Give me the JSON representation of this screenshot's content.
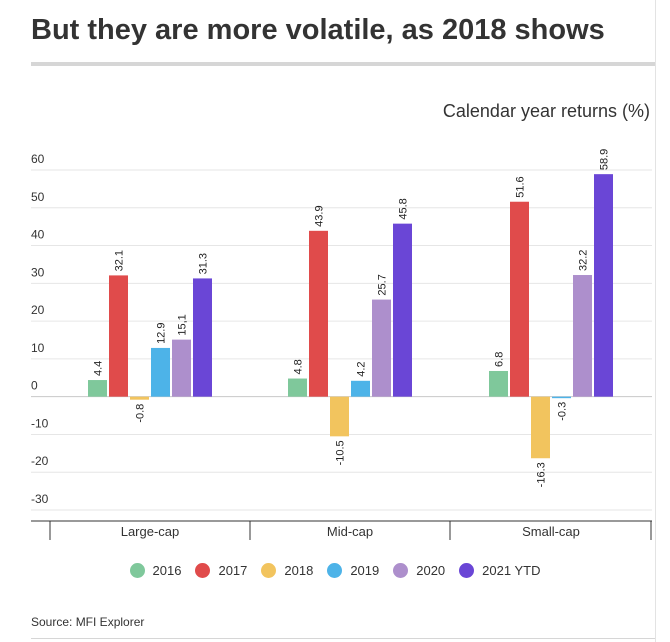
{
  "title": "But they are more volatile, as 2018 shows",
  "subtitle": "Calendar year returns (%)",
  "source": "Source: MFI Explorer",
  "chart_data": {
    "type": "bar",
    "categories": [
      "Large-cap",
      "Mid-cap",
      "Small-cap"
    ],
    "series": [
      {
        "name": "2016",
        "color": "#7fc89b",
        "values": [
          4.4,
          4.8,
          6.8
        ],
        "labels": [
          "4.4",
          "4.8",
          "6.8"
        ]
      },
      {
        "name": "2017",
        "color": "#e04b4b",
        "values": [
          32.1,
          43.9,
          51.6
        ],
        "labels": [
          "32.1",
          "43.9",
          "51.6"
        ]
      },
      {
        "name": "2018",
        "color": "#f2c45e",
        "values": [
          -0.8,
          -10.5,
          -16.3
        ],
        "labels": [
          "-0.8",
          "-10.5",
          "-16.3"
        ]
      },
      {
        "name": "2019",
        "color": "#4db3e8",
        "values": [
          12.9,
          4.2,
          -0.3
        ],
        "labels": [
          "12.9",
          "4.2",
          "-0.3"
        ]
      },
      {
        "name": "2020",
        "color": "#ad8fcc",
        "values": [
          15.1,
          25.7,
          32.2
        ],
        "labels": [
          "15,1",
          "25.7",
          "32.2"
        ]
      },
      {
        "name": "2021 YTD",
        "color": "#6a46d6",
        "values": [
          31.3,
          45.8,
          58.9
        ],
        "labels": [
          "31.3",
          "45.8",
          "58.9"
        ]
      }
    ],
    "yticks": [
      "60",
      "50",
      "40",
      "30",
      "20",
      "10",
      "0",
      "-10",
      "-20",
      "-30"
    ],
    "ylim": [
      -30,
      60
    ],
    "grid": true,
    "legend": "bottom"
  }
}
